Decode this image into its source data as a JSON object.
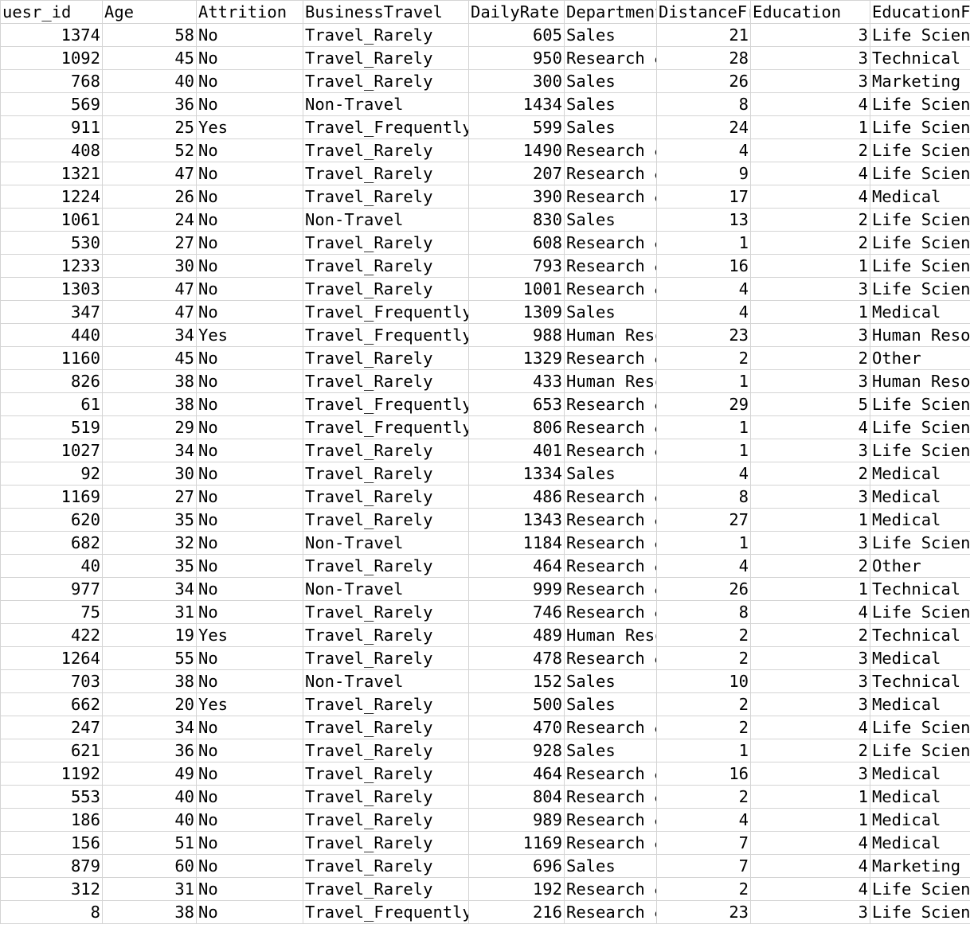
{
  "headers": [
    "uesr_id",
    "Age",
    "Attrition",
    "BusinessTravel",
    "DailyRate",
    "Department",
    "DistanceFromHome",
    "Education",
    "EducationField"
  ],
  "rows": [
    [
      "1374",
      "58",
      "No",
      "Travel_Rarely",
      "605",
      "Sales",
      "21",
      "3",
      "Life Sciences"
    ],
    [
      "1092",
      "45",
      "No",
      "Travel_Rarely",
      "950",
      "Research & Development",
      "28",
      "3",
      "Technical Degree"
    ],
    [
      "768",
      "40",
      "No",
      "Travel_Rarely",
      "300",
      "Sales",
      "26",
      "3",
      "Marketing"
    ],
    [
      "569",
      "36",
      "No",
      "Non-Travel",
      "1434",
      "Sales",
      "8",
      "4",
      "Life Sciences"
    ],
    [
      "911",
      "25",
      "Yes",
      "Travel_Frequently",
      "599",
      "Sales",
      "24",
      "1",
      "Life Sciences"
    ],
    [
      "408",
      "52",
      "No",
      "Travel_Rarely",
      "1490",
      "Research & Development",
      "4",
      "2",
      "Life Sciences"
    ],
    [
      "1321",
      "47",
      "No",
      "Travel_Rarely",
      "207",
      "Research & Development",
      "9",
      "4",
      "Life Sciences"
    ],
    [
      "1224",
      "26",
      "No",
      "Travel_Rarely",
      "390",
      "Research & Development",
      "17",
      "4",
      "Medical"
    ],
    [
      "1061",
      "24",
      "No",
      "Non-Travel",
      "830",
      "Sales",
      "13",
      "2",
      "Life Sciences"
    ],
    [
      "530",
      "27",
      "No",
      "Travel_Rarely",
      "608",
      "Research & Development",
      "1",
      "2",
      "Life Sciences"
    ],
    [
      "1233",
      "30",
      "No",
      "Travel_Rarely",
      "793",
      "Research & Development",
      "16",
      "1",
      "Life Sciences"
    ],
    [
      "1303",
      "47",
      "No",
      "Travel_Rarely",
      "1001",
      "Research & Development",
      "4",
      "3",
      "Life Sciences"
    ],
    [
      "347",
      "47",
      "No",
      "Travel_Frequently",
      "1309",
      "Sales",
      "4",
      "1",
      "Medical"
    ],
    [
      "440",
      "34",
      "Yes",
      "Travel_Frequently",
      "988",
      "Human Resources",
      "23",
      "3",
      "Human Resources"
    ],
    [
      "1160",
      "45",
      "No",
      "Travel_Rarely",
      "1329",
      "Research & Development",
      "2",
      "2",
      "Other"
    ],
    [
      "826",
      "38",
      "No",
      "Travel_Rarely",
      "433",
      "Human Resources",
      "1",
      "3",
      "Human Resources"
    ],
    [
      "61",
      "38",
      "No",
      "Travel_Frequently",
      "653",
      "Research & Development",
      "29",
      "5",
      "Life Sciences"
    ],
    [
      "519",
      "29",
      "No",
      "Travel_Frequently",
      "806",
      "Research & Development",
      "1",
      "4",
      "Life Sciences"
    ],
    [
      "1027",
      "34",
      "No",
      "Travel_Rarely",
      "401",
      "Research & Development",
      "1",
      "3",
      "Life Sciences"
    ],
    [
      "92",
      "30",
      "No",
      "Travel_Rarely",
      "1334",
      "Sales",
      "4",
      "2",
      "Medical"
    ],
    [
      "1169",
      "27",
      "No",
      "Travel_Rarely",
      "486",
      "Research & Development",
      "8",
      "3",
      "Medical"
    ],
    [
      "620",
      "35",
      "No",
      "Travel_Rarely",
      "1343",
      "Research & Development",
      "27",
      "1",
      "Medical"
    ],
    [
      "682",
      "32",
      "No",
      "Non-Travel",
      "1184",
      "Research & Development",
      "1",
      "3",
      "Life Sciences"
    ],
    [
      "40",
      "35",
      "No",
      "Travel_Rarely",
      "464",
      "Research & Development",
      "4",
      "2",
      "Other"
    ],
    [
      "977",
      "34",
      "No",
      "Non-Travel",
      "999",
      "Research & Development",
      "26",
      "1",
      "Technical Degree"
    ],
    [
      "75",
      "31",
      "No",
      "Travel_Rarely",
      "746",
      "Research & Development",
      "8",
      "4",
      "Life Sciences"
    ],
    [
      "422",
      "19",
      "Yes",
      "Travel_Rarely",
      "489",
      "Human Resources",
      "2",
      "2",
      "Technical Degree"
    ],
    [
      "1264",
      "55",
      "No",
      "Travel_Rarely",
      "478",
      "Research & Development",
      "2",
      "3",
      "Medical"
    ],
    [
      "703",
      "38",
      "No",
      "Non-Travel",
      "152",
      "Sales",
      "10",
      "3",
      "Technical Degree"
    ],
    [
      "662",
      "20",
      "Yes",
      "Travel_Rarely",
      "500",
      "Sales",
      "2",
      "3",
      "Medical"
    ],
    [
      "247",
      "34",
      "No",
      "Travel_Rarely",
      "470",
      "Research & Development",
      "2",
      "4",
      "Life Sciences"
    ],
    [
      "621",
      "36",
      "No",
      "Travel_Rarely",
      "928",
      "Sales",
      "1",
      "2",
      "Life Sciences"
    ],
    [
      "1192",
      "49",
      "No",
      "Travel_Rarely",
      "464",
      "Research & Development",
      "16",
      "3",
      "Medical"
    ],
    [
      "553",
      "40",
      "No",
      "Travel_Rarely",
      "804",
      "Research & Development",
      "2",
      "1",
      "Medical"
    ],
    [
      "186",
      "40",
      "No",
      "Travel_Rarely",
      "989",
      "Research & Development",
      "4",
      "1",
      "Medical"
    ],
    [
      "156",
      "51",
      "No",
      "Travel_Rarely",
      "1169",
      "Research & Development",
      "7",
      "4",
      "Medical"
    ],
    [
      "879",
      "60",
      "No",
      "Travel_Rarely",
      "696",
      "Sales",
      "7",
      "4",
      "Marketing"
    ],
    [
      "312",
      "31",
      "No",
      "Travel_Rarely",
      "192",
      "Research & Development",
      "2",
      "4",
      "Life Sciences"
    ],
    [
      "8",
      "38",
      "No",
      "Travel_Frequently",
      "216",
      "Research & Development",
      "23",
      "3",
      "Life Sciences"
    ]
  ],
  "column_align": [
    "right",
    "right",
    "left",
    "left",
    "right",
    "left",
    "right",
    "right",
    "left"
  ],
  "colors": {
    "gridline": "#d4d4d4",
    "background": "#ffffff",
    "text": "#000000"
  }
}
